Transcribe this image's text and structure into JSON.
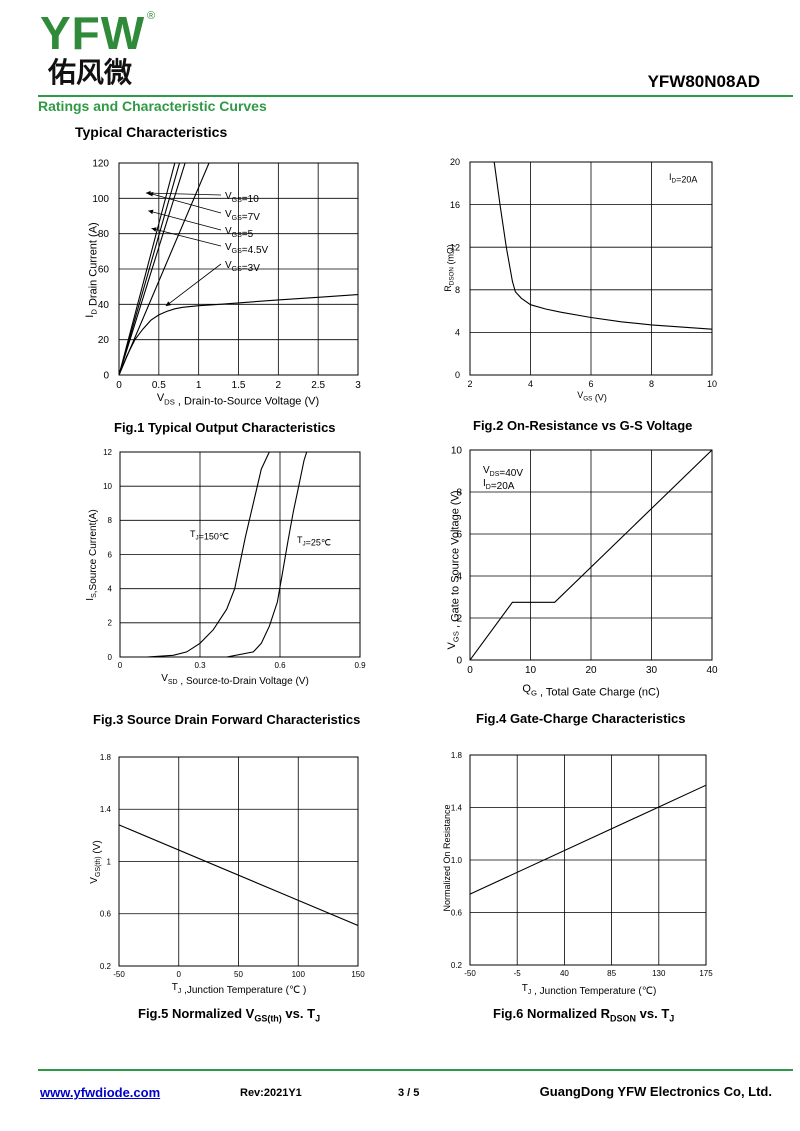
{
  "header": {
    "logo_text": "YFW",
    "logo_reg": "®",
    "logo_cn": "佑风微",
    "part_number": "YFW80N08AD",
    "section_title": "Ratings and Characteristic Curves",
    "sub_title": "Typical Characteristics",
    "brand_color": "#2f9a45"
  },
  "footer": {
    "url": "www.yfwdiode.com",
    "rev": "Rev:2021Y1",
    "page": "3 / 5",
    "company": "GuangDong YFW Electronics Co, Ltd."
  },
  "chart_data": [
    {
      "id": "fig1",
      "type": "line",
      "caption": "Fig.1 Typical Output Characteristics",
      "xlabel": "VDS , Drain-to-Source Voltage (V)",
      "ylabel": "ID Drain Current (A)",
      "xlim": [
        0,
        3
      ],
      "ylim": [
        0,
        120
      ],
      "xticks": [
        "0",
        "0.5",
        "1",
        "1.5",
        "2",
        "2.5",
        "3"
      ],
      "yticks": [
        "0",
        "20",
        "40",
        "60",
        "80",
        "100",
        "120"
      ],
      "grid": true,
      "series": [
        {
          "name": "VGS=10",
          "x": [
            0,
            0.7
          ],
          "y": [
            0,
            120
          ]
        },
        {
          "name": "VGS=7V",
          "x": [
            0,
            0.76
          ],
          "y": [
            0,
            120
          ]
        },
        {
          "name": "VGS=5",
          "x": [
            0,
            0.83
          ],
          "y": [
            0,
            120
          ]
        },
        {
          "name": "VGS=4.5V",
          "x": [
            0,
            1.13
          ],
          "y": [
            0,
            120
          ]
        },
        {
          "name": "VGS=3V",
          "x": [
            0,
            0.1,
            0.2,
            0.3,
            0.4,
            0.5,
            0.6,
            0.7,
            0.8,
            1.0,
            1.2,
            1.5,
            2.0,
            2.5,
            3.0
          ],
          "y": [
            0,
            11,
            20,
            26,
            31,
            34,
            36,
            37.5,
            38.3,
            39.2,
            39.8,
            40.8,
            42.5,
            44,
            45.5
          ]
        }
      ]
    },
    {
      "id": "fig2",
      "type": "line",
      "caption": "Fig.2 On-Resistance vs G-S Voltage",
      "xlabel": "VGS (V)",
      "ylabel": "RDSON (mΩ)",
      "xlim": [
        2,
        10
      ],
      "ylim": [
        0,
        20
      ],
      "xticks": [
        "2",
        "4",
        "6",
        "8",
        "10"
      ],
      "yticks": [
        "0",
        "4",
        "8",
        "12",
        "16",
        "20"
      ],
      "grid": true,
      "annotation": "ID=20A",
      "series": [
        {
          "name": "",
          "x": [
            2.8,
            3.0,
            3.2,
            3.4,
            3.5,
            3.7,
            4.0,
            4.5,
            5,
            6,
            7,
            8,
            9,
            10
          ],
          "y": [
            20,
            15.8,
            12,
            8.8,
            7.8,
            7.2,
            6.6,
            6.2,
            5.9,
            5.4,
            5.0,
            4.7,
            4.5,
            4.3
          ]
        }
      ]
    },
    {
      "id": "fig3",
      "type": "line",
      "caption": "Fig.3 Source Drain Forward Characteristics",
      "xlabel": "VSD , Source-to-Drain  Voltage (V)",
      "ylabel": "IS,Source Current(A)",
      "xlim": [
        0,
        0.9
      ],
      "ylim": [
        0,
        12
      ],
      "xticks": [
        "0",
        "0.3",
        "0.6",
        "0.9"
      ],
      "yticks": [
        "0",
        "2",
        "4",
        "6",
        "8",
        "10",
        "12"
      ],
      "grid": true,
      "series": [
        {
          "name": "TJ=150℃",
          "x": [
            0.1,
            0.2,
            0.25,
            0.3,
            0.35,
            0.4,
            0.43,
            0.45,
            0.47,
            0.5,
            0.53,
            0.56
          ],
          "y": [
            0,
            0.1,
            0.3,
            0.8,
            1.6,
            2.8,
            4,
            5.5,
            7,
            9,
            11,
            12
          ]
        },
        {
          "name": "TJ=25℃",
          "x": [
            0.4,
            0.5,
            0.53,
            0.56,
            0.59,
            0.61,
            0.63,
            0.65,
            0.67,
            0.69,
            0.7
          ],
          "y": [
            0,
            0.3,
            0.8,
            1.8,
            3.2,
            5,
            6.8,
            8.5,
            10,
            11.5,
            12
          ]
        }
      ]
    },
    {
      "id": "fig4",
      "type": "line",
      "caption": "Fig.4 Gate-Charge Characteristics",
      "xlabel": "QG , Total Gate Charge (nC)",
      "ylabel": "VGS , Gate to Source Voltage (V)",
      "xlim": [
        0,
        40
      ],
      "ylim": [
        0,
        10
      ],
      "xticks": [
        "0",
        "10",
        "20",
        "30",
        "40"
      ],
      "yticks": [
        "0",
        "2",
        "4",
        "6",
        "8",
        "10"
      ],
      "grid": true,
      "annotation": [
        "VDS=40V",
        "ID=20A"
      ],
      "series": [
        {
          "name": "",
          "x": [
            0,
            7,
            14,
            40
          ],
          "y": [
            0,
            2.75,
            2.75,
            10
          ]
        }
      ]
    },
    {
      "id": "fig5",
      "type": "line",
      "caption": "Fig.5 Normalized VGS(th) vs. TJ",
      "xlabel": "TJ ,Junction Temperature (℃ )",
      "ylabel": "VGS(th) (V)",
      "xlim": [
        -50,
        150
      ],
      "ylim": [
        0.2,
        1.8
      ],
      "xticks": [
        "-50",
        "0",
        "50",
        "100",
        "150"
      ],
      "yticks": [
        "0.2",
        "0.6",
        "1",
        "1.4",
        "1.8"
      ],
      "grid": true,
      "series": [
        {
          "name": "",
          "x": [
            -50,
            150
          ],
          "y": [
            1.28,
            0.51
          ]
        }
      ]
    },
    {
      "id": "fig6",
      "type": "line",
      "caption": "Fig.6 Normalized RDSON vs. TJ",
      "xlabel": "TJ , Junction Temperature (℃)",
      "ylabel": "Normalized On Resistance",
      "xlim": [
        -50,
        175
      ],
      "ylim": [
        0.2,
        1.8
      ],
      "xticks": [
        "-50",
        "-5",
        "40",
        "85",
        "130",
        "175"
      ],
      "yticks": [
        "0.2",
        "0.6",
        "1.0",
        "1.4",
        "1.8"
      ],
      "grid": true,
      "series": [
        {
          "name": "",
          "x": [
            -50,
            175
          ],
          "y": [
            0.74,
            1.57
          ]
        }
      ]
    }
  ]
}
